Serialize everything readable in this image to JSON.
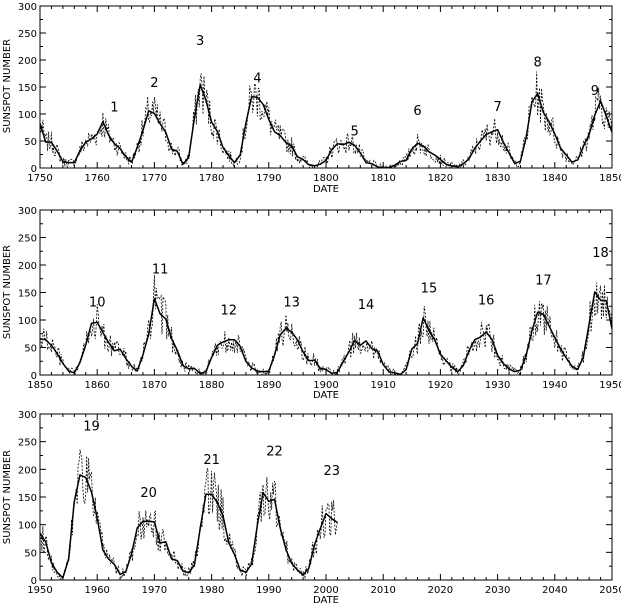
{
  "chart_data": [
    {
      "type": "line",
      "xlabel": "DATE",
      "ylabel": "SUNSPOT NUMBER",
      "xlim": [
        1750,
        1850
      ],
      "ylim": [
        0,
        300
      ],
      "xticks": [
        "1750",
        "1760",
        "1770",
        "1780",
        "1790",
        "1800",
        "1810",
        "1820",
        "1830",
        "1840",
        "1850"
      ],
      "yticks": [
        "0",
        "50",
        "100",
        "150",
        "200",
        "250",
        "300"
      ],
      "series": [
        {
          "style": "solid",
          "x": [
            1750,
            1751,
            1752,
            1753,
            1754,
            1755,
            1756,
            1757,
            1758,
            1759,
            1760,
            1761,
            1762,
            1763,
            1764,
            1765,
            1766,
            1767,
            1768,
            1769,
            1770,
            1771,
            1772,
            1773,
            1774,
            1775,
            1776,
            1777,
            1778,
            1779,
            1780,
            1781,
            1782,
            1783,
            1784,
            1785,
            1786,
            1787,
            1788,
            1789,
            1790,
            1791,
            1792,
            1793,
            1794,
            1795,
            1796,
            1797,
            1798,
            1799,
            1800,
            1801,
            1802,
            1803,
            1804,
            1805,
            1806,
            1807,
            1808,
            1809,
            1810,
            1811,
            1812,
            1813,
            1814,
            1815,
            1816,
            1817,
            1818,
            1819,
            1820,
            1821,
            1822,
            1823,
            1824,
            1825,
            1826,
            1827,
            1828,
            1829,
            1830,
            1831,
            1832,
            1833,
            1834,
            1835,
            1836,
            1837,
            1838,
            1839,
            1840,
            1841,
            1842,
            1843,
            1844,
            1845,
            1846,
            1847,
            1848,
            1849,
            1850
          ],
          "y": [
            83,
            48,
            48,
            31,
            12,
            10,
            10,
            32,
            48,
            54,
            63,
            86,
            61,
            45,
            36,
            21,
            11,
            38,
            70,
            106,
            101,
            82,
            66,
            35,
            31,
            7,
            20,
            92,
            154,
            126,
            85,
            68,
            38,
            23,
            10,
            24,
            83,
            132,
            131,
            118,
            90,
            67,
            60,
            47,
            41,
            21,
            16,
            6,
            4,
            7,
            14,
            34,
            45,
            43,
            48,
            42,
            28,
            10,
            8,
            2,
            0,
            1,
            5,
            12,
            14,
            35,
            46,
            41,
            30,
            24,
            16,
            7,
            4,
            2,
            8,
            17,
            36,
            50,
            62,
            67,
            71,
            48,
            28,
            8,
            13,
            57,
            122,
            138,
            103,
            86,
            63,
            37,
            24,
            11,
            15,
            40,
            62,
            98,
            124,
            96,
            66
          ]
        }
      ],
      "annotations": [
        {
          "text": "1",
          "x": 1763,
          "y": 105
        },
        {
          "text": "2",
          "x": 1770,
          "y": 150
        },
        {
          "text": "3",
          "x": 1778,
          "y": 228
        },
        {
          "text": "4",
          "x": 1788,
          "y": 158
        },
        {
          "text": "5",
          "x": 1805,
          "y": 60
        },
        {
          "text": "6",
          "x": 1816,
          "y": 98
        },
        {
          "text": "7",
          "x": 1830,
          "y": 106
        },
        {
          "text": "8",
          "x": 1837,
          "y": 188
        },
        {
          "text": "9",
          "x": 1847,
          "y": 135
        }
      ]
    },
    {
      "type": "line",
      "xlabel": "DATE",
      "ylabel": "SUNSPOT NUMBER",
      "xlim": [
        1850,
        1950
      ],
      "ylim": [
        0,
        300
      ],
      "xticks": [
        "1850",
        "1860",
        "1870",
        "1880",
        "1890",
        "1900",
        "1910",
        "1920",
        "1930",
        "1940",
        "1950"
      ],
      "yticks": [
        "0",
        "50",
        "100",
        "150",
        "200",
        "250",
        "300"
      ],
      "series": [
        {
          "style": "solid",
          "x": [
            1850,
            1851,
            1852,
            1853,
            1854,
            1855,
            1856,
            1857,
            1858,
            1859,
            1860,
            1861,
            1862,
            1863,
            1864,
            1865,
            1866,
            1867,
            1868,
            1869,
            1870,
            1871,
            1872,
            1873,
            1874,
            1875,
            1876,
            1877,
            1878,
            1879,
            1880,
            1881,
            1882,
            1883,
            1884,
            1885,
            1886,
            1887,
            1888,
            1889,
            1890,
            1891,
            1892,
            1893,
            1894,
            1895,
            1896,
            1897,
            1898,
            1899,
            1900,
            1901,
            1902,
            1903,
            1904,
            1905,
            1906,
            1907,
            1908,
            1909,
            1910,
            1911,
            1912,
            1913,
            1914,
            1915,
            1916,
            1917,
            1918,
            1919,
            1920,
            1921,
            1922,
            1923,
            1924,
            1925,
            1926,
            1927,
            1928,
            1929,
            1930,
            1931,
            1932,
            1933,
            1934,
            1935,
            1936,
            1937,
            1938,
            1939,
            1940,
            1941,
            1942,
            1943,
            1944,
            1945,
            1946,
            1947,
            1948,
            1949,
            1950
          ],
          "y": [
            66,
            64,
            54,
            39,
            21,
            7,
            4,
            23,
            55,
            94,
            96,
            77,
            59,
            44,
            47,
            30,
            16,
            7,
            37,
            74,
            139,
            111,
            102,
            66,
            45,
            17,
            11,
            12,
            3,
            6,
            32,
            54,
            60,
            64,
            64,
            52,
            25,
            13,
            7,
            6,
            7,
            36,
            73,
            85,
            78,
            64,
            42,
            26,
            27,
            12,
            10,
            3,
            5,
            24,
            42,
            63,
            54,
            62,
            48,
            44,
            19,
            6,
            4,
            1,
            10,
            47,
            57,
            104,
            81,
            64,
            38,
            26,
            14,
            6,
            17,
            44,
            64,
            69,
            78,
            65,
            36,
            21,
            11,
            6,
            9,
            36,
            80,
            114,
            110,
            89,
            68,
            48,
            31,
            16,
            10,
            33,
            93,
            151,
            136,
            135,
            84
          ]
        }
      ],
      "annotations": [
        {
          "text": "10",
          "x": 1860,
          "y": 125
        },
        {
          "text": "11",
          "x": 1871,
          "y": 185
        },
        {
          "text": "12",
          "x": 1883,
          "y": 110
        },
        {
          "text": "13",
          "x": 1894,
          "y": 125
        },
        {
          "text": "14",
          "x": 1907,
          "y": 120
        },
        {
          "text": "15",
          "x": 1918,
          "y": 150
        },
        {
          "text": "16",
          "x": 1928,
          "y": 128
        },
        {
          "text": "17",
          "x": 1938,
          "y": 165
        },
        {
          "text": "18",
          "x": 1948,
          "y": 215
        }
      ]
    },
    {
      "type": "line",
      "xlabel": "DATE",
      "ylabel": "SUNSPOT NUMBER",
      "xlim": [
        1950,
        2050
      ],
      "ylim": [
        0,
        300
      ],
      "xticks": [
        "1950",
        "1960",
        "1970",
        "1980",
        "1990",
        "2000",
        "2010",
        "2020",
        "2030",
        "2040",
        "2050"
      ],
      "yticks": [
        "0",
        "50",
        "100",
        "150",
        "200",
        "250",
        "300"
      ],
      "series": [
        {
          "style": "solid",
          "x": [
            1950,
            1951,
            1952,
            1953,
            1954,
            1955,
            1956,
            1957,
            1958,
            1959,
            1960,
            1961,
            1962,
            1963,
            1964,
            1965,
            1966,
            1967,
            1968,
            1969,
            1970,
            1971,
            1972,
            1973,
            1974,
            1975,
            1976,
            1977,
            1978,
            1979,
            1980,
            1981,
            1982,
            1983,
            1984,
            1985,
            1986,
            1987,
            1988,
            1989,
            1990,
            1991,
            1992,
            1993,
            1994,
            1995,
            1996,
            1997,
            1998,
            1999,
            2000,
            2001,
            2002
          ],
          "y": [
            84,
            69,
            31,
            14,
            4,
            38,
            142,
            190,
            185,
            159,
            112,
            54,
            38,
            28,
            10,
            15,
            47,
            94,
            106,
            106,
            105,
            67,
            69,
            38,
            35,
            16,
            13,
            27,
            93,
            155,
            155,
            140,
            116,
            67,
            46,
            18,
            14,
            29,
            100,
            158,
            142,
            146,
            94,
            55,
            30,
            18,
            9,
            21,
            64,
            93,
            120,
            111,
            104
          ]
        }
      ],
      "annotations": [
        {
          "text": "19",
          "x": 1959,
          "y": 270
        },
        {
          "text": "20",
          "x": 1969,
          "y": 150
        },
        {
          "text": "21",
          "x": 1980,
          "y": 210
        },
        {
          "text": "22",
          "x": 1991,
          "y": 225
        },
        {
          "text": "23",
          "x": 2001,
          "y": 190
        }
      ]
    }
  ]
}
